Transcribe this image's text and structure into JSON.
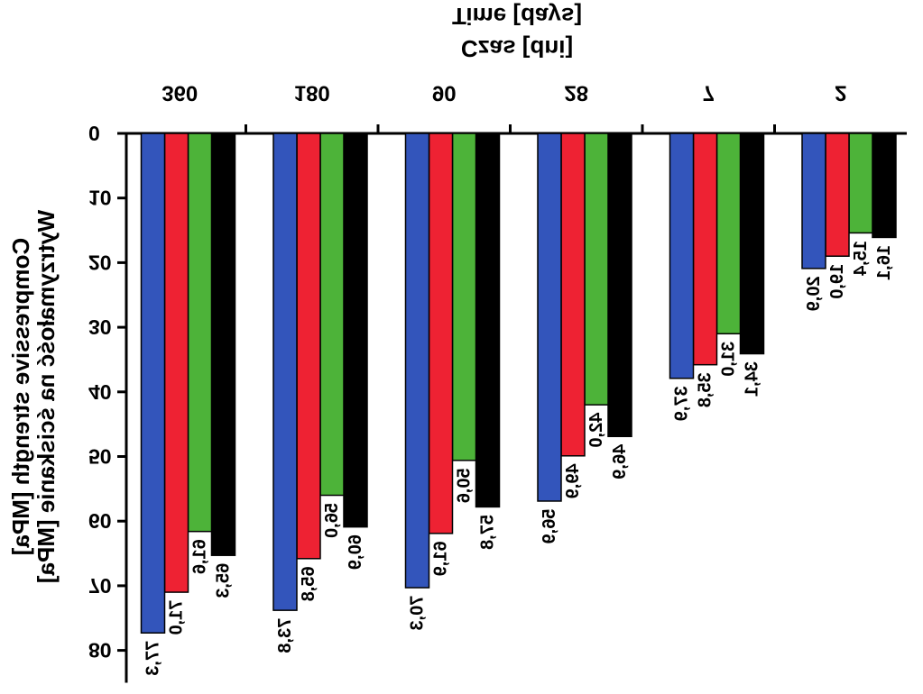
{
  "chart_data": {
    "type": "bar",
    "orientation": "vertical-downward",
    "mirrored_image": true,
    "x_axis_position": "top",
    "x_axis_labels": [
      "Czas [dni]",
      "Time [days]"
    ],
    "y_axis_labels": [
      "Wytrzymałość na ściskanie [MPa]",
      "Compressive strength [MPa]"
    ],
    "categories": [
      "2",
      "7",
      "28",
      "90",
      "180",
      "360"
    ],
    "series": [
      {
        "color": "#000000",
        "values": [
          16.1,
          34.1,
          46.9,
          57.8,
          60.9,
          65.3
        ]
      },
      {
        "color": "#4db339",
        "values": [
          15.4,
          31.0,
          42.0,
          50.6,
          56.0,
          61.6
        ]
      },
      {
        "color": "#ee2233",
        "values": [
          19.0,
          35.8,
          49.9,
          61.9,
          65.8,
          71.0
        ]
      },
      {
        "color": "#3355bb",
        "values": [
          20.9,
          37.9,
          56.9,
          70.3,
          73.8,
          77.3
        ]
      }
    ],
    "value_labels": [
      [
        "16,1",
        "34,1",
        "46,9",
        "57,8",
        "60,9",
        "65,3"
      ],
      [
        "15,4",
        "31,0",
        "42,0",
        "50,6",
        "56,0",
        "61,6"
      ],
      [
        "19,0",
        "35,8",
        "49,9",
        "61,9",
        "65,8",
        "71,0"
      ],
      [
        "20,9",
        "37,9",
        "56,9",
        "70,3",
        "73,8",
        "77,3"
      ]
    ],
    "y_ticks": [
      0,
      10,
      20,
      30,
      40,
      50,
      60,
      70,
      80
    ],
    "y_tick_labels": [
      "0",
      "10",
      "20",
      "30",
      "40",
      "50",
      "60",
      "70",
      "80"
    ],
    "ylim": [
      0,
      85
    ],
    "grid": false,
    "legend": "none"
  }
}
